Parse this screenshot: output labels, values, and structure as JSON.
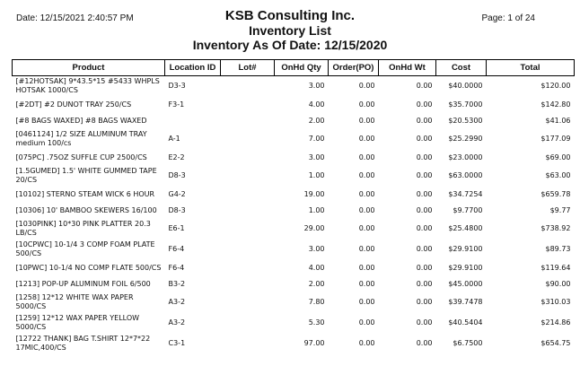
{
  "header": {
    "date": "Date: 12/15/2021 2:40:57 PM",
    "page": "Page: 1 of 24",
    "company": "KSB Consulting Inc.",
    "report_title": "Inventory List",
    "report_subtitle": "Inventory As Of Date: 12/15/2020"
  },
  "columns": [
    "Product",
    "Location ID",
    "Lot#",
    "OnHd Qty",
    "Order(PO)",
    "OnHd Wt",
    "Cost",
    "Total"
  ],
  "rows": [
    {
      "product": "[#12HOTSAK] 9*43.5*15  #5433 WHPLS HOTSAK 1000/CS",
      "location": "D3-3",
      "lot": "",
      "qty": "3.00",
      "po": "0.00",
      "wt": "0.00",
      "cost": "$40.0000",
      "total": "$120.00"
    },
    {
      "product": "[#2DT] #2 DUNOT TRAY  250/CS",
      "location": "F3-1",
      "lot": "",
      "qty": "4.00",
      "po": "0.00",
      "wt": "0.00",
      "cost": "$35.7000",
      "total": "$142.80"
    },
    {
      "product": "[#8 BAGS WAXED] #8 BAGS WAXED",
      "location": "",
      "lot": "",
      "qty": "2.00",
      "po": "0.00",
      "wt": "0.00",
      "cost": "$20.5300",
      "total": "$41.06"
    },
    {
      "product": "[0461124] 1/2 SIZE ALUMINUM TRAY medium 100/cs",
      "location": "A-1",
      "lot": "",
      "qty": "7.00",
      "po": "0.00",
      "wt": "0.00",
      "cost": "$25.2990",
      "total": "$177.09"
    },
    {
      "product": "[075PC] .75OZ SUFFLE CUP 2500/CS",
      "location": "E2-2",
      "lot": "",
      "qty": "3.00",
      "po": "0.00",
      "wt": "0.00",
      "cost": "$23.0000",
      "total": "$69.00"
    },
    {
      "product": "[1.5GUMED] 1.5' WHITE GUMMED TAPE 20/CS",
      "location": "D8-3",
      "lot": "",
      "qty": "1.00",
      "po": "0.00",
      "wt": "0.00",
      "cost": "$63.0000",
      "total": "$63.00"
    },
    {
      "product": "[10102] STERNO STEAM WICK 6 HOUR",
      "location": "G4-2",
      "lot": "",
      "qty": "19.00",
      "po": "0.00",
      "wt": "0.00",
      "cost": "$34.7254",
      "total": "$659.78"
    },
    {
      "product": "[10306] 10' BAMBOO SKEWERS  16/100",
      "location": "D8-3",
      "lot": "",
      "qty": "1.00",
      "po": "0.00",
      "wt": "0.00",
      "cost": "$9.7700",
      "total": "$9.77"
    },
    {
      "product": "[1030PINK] 10*30 PINK PLATTER  20.3 LB/CS",
      "location": "E6-1",
      "lot": "",
      "qty": "29.00",
      "po": "0.00",
      "wt": "0.00",
      "cost": "$25.4800",
      "total": "$738.92"
    },
    {
      "product": "[10CPWC] 10-1/4 3 COMP FOAM PLATE 500/CS",
      "location": "F6-4",
      "lot": "",
      "qty": "3.00",
      "po": "0.00",
      "wt": "0.00",
      "cost": "$29.9100",
      "total": "$89.73"
    },
    {
      "product": "[10PWC] 10-1/4 NO COMP FLATE 500/CS",
      "location": "F6-4",
      "lot": "",
      "qty": "4.00",
      "po": "0.00",
      "wt": "0.00",
      "cost": "$29.9100",
      "total": "$119.64"
    },
    {
      "product": "[1213] POP-UP ALUMINUM FOIL 6/500",
      "location": "B3-2",
      "lot": "",
      "qty": "2.00",
      "po": "0.00",
      "wt": "0.00",
      "cost": "$45.0000",
      "total": "$90.00"
    },
    {
      "product": "[1258] 12*12 WHITE WAX PAPER 5000/CS",
      "location": "A3-2",
      "lot": "",
      "qty": "7.80",
      "po": "0.00",
      "wt": "0.00",
      "cost": "$39.7478",
      "total": "$310.03"
    },
    {
      "product": "[1259] 12*12 WAX PAPER YELLOW 5000/CS",
      "location": "A3-2",
      "lot": "",
      "qty": "5.30",
      "po": "0.00",
      "wt": "0.00",
      "cost": "$40.5404",
      "total": "$214.86"
    },
    {
      "product": "[12722 THANK] BAG T.SHIRT  12*7*22 17MIC,400/CS",
      "location": "C3-1",
      "lot": "",
      "qty": "97.00",
      "po": "0.00",
      "wt": "0.00",
      "cost": "$6.7500",
      "total": "$654.75"
    }
  ]
}
